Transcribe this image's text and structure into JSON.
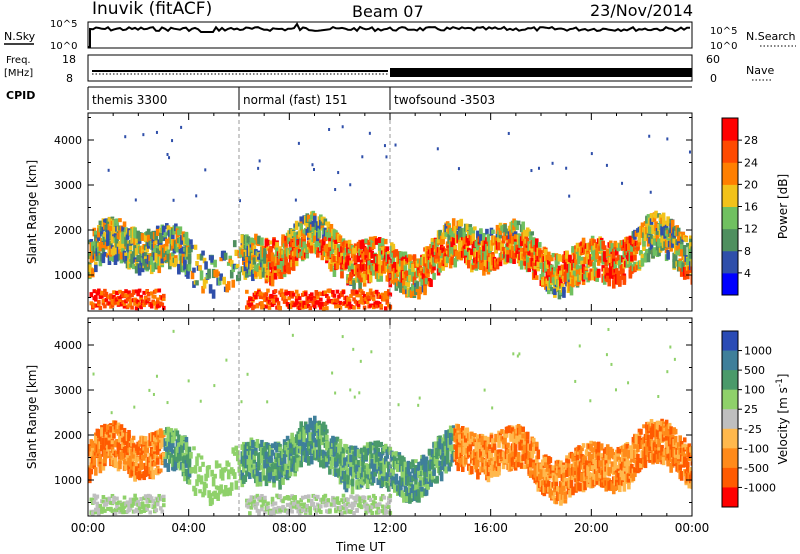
{
  "header": {
    "station": "Inuvik (fitACF)",
    "beam": "Beam 07",
    "date": "23/Nov/2014"
  },
  "top_panels": {
    "nsky_label": "N.Sky",
    "nsky_ticks": [
      "10^5",
      "10^0"
    ],
    "nsearch_label": "N.Search",
    "nsearch_ticks": [
      "10^5",
      "10^0"
    ],
    "freq_label": "Freq.",
    "freq_unit": "[MHz]",
    "freq_ticks": [
      "18",
      "8"
    ],
    "nave_label": "Nave",
    "nave_ticks": [
      "60",
      "0"
    ],
    "cpid_label": "CPID"
  },
  "cpid_segments": [
    {
      "label": "themis 3300",
      "start": 0,
      "end": 6
    },
    {
      "label": "normal (fast) 151",
      "start": 6,
      "end": 12
    },
    {
      "label": "twofsound -3503",
      "start": 12,
      "end": 24
    }
  ],
  "colors": {
    "power_scale": [
      "#0000ff",
      "#2f4faa",
      "#4f8f5f",
      "#70c060",
      "#f2c21a",
      "#ff7f00",
      "#ff4a00",
      "#ff0000"
    ],
    "velocity_scale": [
      "#2a4bb5",
      "#3f7f9a",
      "#4a9a6a",
      "#8fd16a",
      "#bfbfbf",
      "#ffb84d",
      "#ff8a1a",
      "#ff5a00",
      "#ff0000"
    ]
  },
  "chart_data": [
    {
      "type": "heatmap",
      "xlabel": "",
      "ylabel": "Slant Range [km]",
      "x_ticks": [
        "00:00",
        "04:00",
        "08:00",
        "12:00",
        "16:00",
        "20:00",
        "00:00"
      ],
      "xlim": [
        0,
        24
      ],
      "ylim": [
        200,
        4600
      ],
      "y_ticks": [
        1000,
        2000,
        3000,
        4000
      ],
      "colorbar_label": "Power [dB]",
      "colorbar_ticks": [
        4,
        8,
        12,
        16,
        20,
        24,
        28
      ],
      "colorbar_range": [
        0,
        32
      ]
    },
    {
      "type": "heatmap",
      "xlabel": "Time UT",
      "ylabel": "Slant Range [km]",
      "x_ticks": [
        "00:00",
        "04:00",
        "08:00",
        "12:00",
        "16:00",
        "20:00",
        "00:00"
      ],
      "xlim": [
        0,
        24
      ],
      "ylim": [
        200,
        4600
      ],
      "y_ticks": [
        1000,
        2000,
        3000,
        4000
      ],
      "colorbar_label": "Velocity [m s",
      "colorbar_label_sup": "-1",
      "colorbar_label_end": "]",
      "colorbar_ticks": [
        "1000",
        "500",
        "100",
        "25",
        "-25",
        "-100",
        "-500",
        "-1000"
      ]
    }
  ]
}
